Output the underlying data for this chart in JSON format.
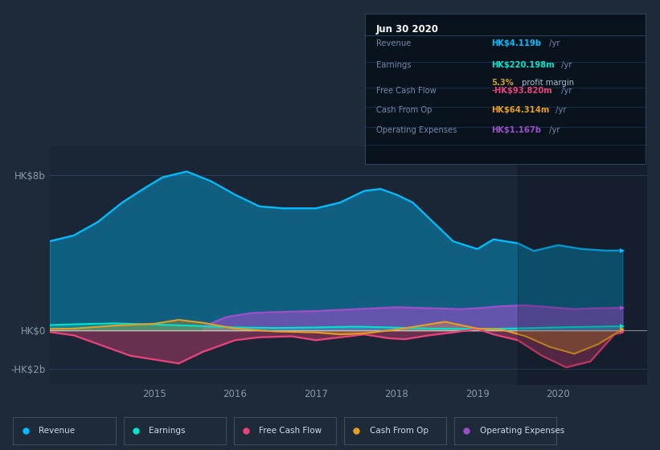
{
  "bg_color": "#1e2a38",
  "plot_bg_color": "#1a2535",
  "title": "Jun 30 2020",
  "yticks_labels": [
    "HK$8b",
    "HK$0",
    "-HK$2b"
  ],
  "yticks_values": [
    8000000000,
    0,
    -2000000000
  ],
  "ylim_min": -2800000000,
  "ylim_max": 9500000000,
  "xlim_start": 2013.7,
  "xlim_end": 2021.1,
  "xticks": [
    2015,
    2016,
    2017,
    2018,
    2019,
    2020
  ],
  "highlight_start": 2019.5,
  "colors": {
    "revenue": "#00bfff",
    "earnings": "#00e5cc",
    "free_cash_flow": "#e8437a",
    "cash_from_op": "#e8a020",
    "operating_expenses": "#9b4fc8"
  },
  "revenue_x": [
    2013.7,
    2014.0,
    2014.3,
    2014.6,
    2014.9,
    2015.1,
    2015.4,
    2015.7,
    2016.0,
    2016.3,
    2016.6,
    2017.0,
    2017.3,
    2017.6,
    2017.8,
    2018.0,
    2018.2,
    2018.4,
    2018.7,
    2019.0,
    2019.2,
    2019.5,
    2019.7,
    2020.0,
    2020.3,
    2020.6,
    2020.8
  ],
  "revenue_y": [
    4600000000,
    4900000000,
    5600000000,
    6600000000,
    7400000000,
    7900000000,
    8200000000,
    7700000000,
    7000000000,
    6400000000,
    6300000000,
    6300000000,
    6600000000,
    7200000000,
    7300000000,
    7000000000,
    6600000000,
    5800000000,
    4600000000,
    4200000000,
    4700000000,
    4500000000,
    4100000000,
    4400000000,
    4200000000,
    4119000000,
    4119000000
  ],
  "earnings_x": [
    2013.7,
    2014.0,
    2014.5,
    2015.0,
    2015.5,
    2016.0,
    2016.5,
    2017.0,
    2017.5,
    2018.0,
    2018.5,
    2019.0,
    2019.5,
    2020.0,
    2020.5,
    2020.8
  ],
  "earnings_y": [
    280000000,
    320000000,
    370000000,
    310000000,
    240000000,
    160000000,
    130000000,
    160000000,
    200000000,
    150000000,
    90000000,
    80000000,
    110000000,
    160000000,
    200000000,
    220000000
  ],
  "fcf_x": [
    2013.7,
    2014.0,
    2014.3,
    2014.7,
    2015.0,
    2015.3,
    2015.6,
    2016.0,
    2016.3,
    2016.7,
    2017.0,
    2017.3,
    2017.6,
    2017.9,
    2018.1,
    2018.4,
    2018.7,
    2019.0,
    2019.2,
    2019.5,
    2019.8,
    2020.1,
    2020.4,
    2020.7,
    2020.8
  ],
  "fcf_y": [
    -80000000,
    -250000000,
    -700000000,
    -1300000000,
    -1500000000,
    -1700000000,
    -1100000000,
    -500000000,
    -350000000,
    -300000000,
    -500000000,
    -350000000,
    -200000000,
    -400000000,
    -450000000,
    -250000000,
    -100000000,
    80000000,
    -200000000,
    -500000000,
    -1300000000,
    -1900000000,
    -1600000000,
    -200000000,
    -93820000
  ],
  "cfo_x": [
    2013.7,
    2014.0,
    2014.5,
    2015.0,
    2015.3,
    2015.6,
    2016.0,
    2016.5,
    2017.0,
    2017.3,
    2017.6,
    2018.0,
    2018.3,
    2018.6,
    2019.0,
    2019.3,
    2019.6,
    2019.9,
    2020.2,
    2020.5,
    2020.8
  ],
  "cfo_y": [
    80000000,
    100000000,
    250000000,
    350000000,
    550000000,
    400000000,
    100000000,
    -50000000,
    -100000000,
    -200000000,
    -150000000,
    50000000,
    250000000,
    450000000,
    100000000,
    50000000,
    -300000000,
    -850000000,
    -1200000000,
    -700000000,
    64314000
  ],
  "opex_x": [
    2015.6,
    2015.9,
    2016.2,
    2016.5,
    2017.0,
    2017.5,
    2018.0,
    2018.4,
    2018.8,
    2019.0,
    2019.3,
    2019.6,
    2019.9,
    2020.2,
    2020.5,
    2020.8
  ],
  "opex_y": [
    200000000,
    700000000,
    900000000,
    950000000,
    1000000000,
    1100000000,
    1200000000,
    1150000000,
    1100000000,
    1150000000,
    1250000000,
    1300000000,
    1200000000,
    1100000000,
    1150000000,
    1167000000
  ],
  "tooltip_title": "Jun 30 2020",
  "tooltip_rows": [
    {
      "label": "Revenue",
      "value": "HK$4.119b",
      "suffix": " /yr",
      "value_color": "#00bfff",
      "sub": null
    },
    {
      "label": "Earnings",
      "value": "HK$220.198m",
      "suffix": " /yr",
      "value_color": "#00e5cc",
      "sub": "5.3% profit margin"
    },
    {
      "label": "Free Cash Flow",
      "value": "-HK$93.820m",
      "suffix": " /yr",
      "value_color": "#e8437a",
      "sub": null
    },
    {
      "label": "Cash From Op",
      "value": "HK$64.314m",
      "suffix": " /yr",
      "value_color": "#e8a020",
      "sub": null
    },
    {
      "label": "Operating Expenses",
      "value": "HK$1.167b",
      "suffix": " /yr",
      "value_color": "#9b4fc8",
      "sub": null
    }
  ],
  "legend": [
    {
      "label": "Revenue",
      "color": "#00bfff"
    },
    {
      "label": "Earnings",
      "color": "#00e5cc"
    },
    {
      "label": "Free Cash Flow",
      "color": "#e8437a"
    },
    {
      "label": "Cash From Op",
      "color": "#e8a020"
    },
    {
      "label": "Operating Expenses",
      "color": "#9b4fc8"
    }
  ]
}
